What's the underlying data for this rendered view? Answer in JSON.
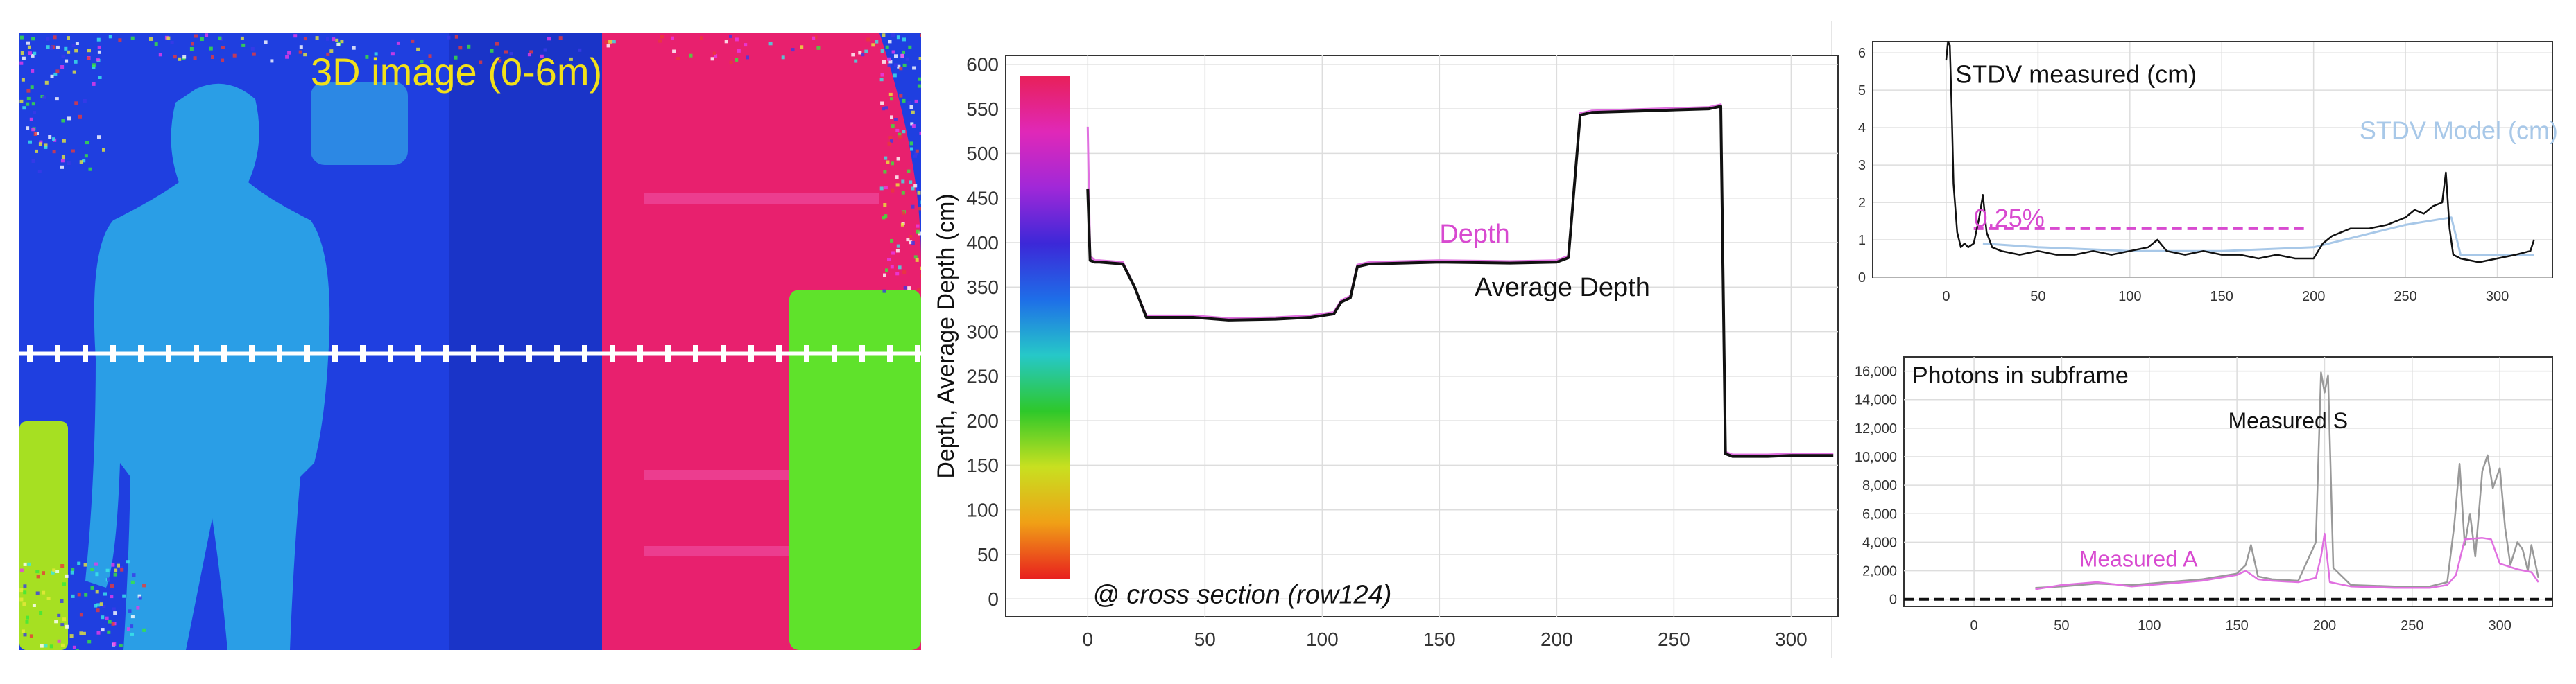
{
  "depth_image": {
    "title": "3D image (0-6m)",
    "title_color": "#f2e01a",
    "colors": {
      "background": "#1f3fe0",
      "person": "#2a9ee6",
      "pink_wall": "#e8206e",
      "green_box": "#5fe22b",
      "yellow_green": "#a6e022",
      "grid_line": "#ffffff"
    }
  },
  "chart_data": [
    {
      "type": "line",
      "id": "cross_section",
      "ylabel": "Depth, Average Depth (cm)",
      "xlim": [
        -35,
        320
      ],
      "ylim": [
        -20,
        610
      ],
      "xticks": [
        0,
        50,
        100,
        150,
        200,
        250,
        300
      ],
      "yticks": [
        0,
        50,
        100,
        150,
        200,
        250,
        300,
        350,
        400,
        450,
        500,
        550,
        600
      ],
      "grid": true,
      "colorbar_gradient": [
        "#e8201e",
        "#f0a016",
        "#c8e020",
        "#2ec82a",
        "#26c8c8",
        "#1e6ee8",
        "#3c28d8",
        "#a028d8",
        "#e028b8",
        "#e8205a"
      ],
      "annotations": [
        {
          "text": "Depth",
          "color": "#d84ad0",
          "x": 150,
          "y": 400
        },
        {
          "text": "Average Depth",
          "color": "#111111",
          "x": 165,
          "y": 340
        },
        {
          "text": "@ cross section (row124)",
          "color": "#111111",
          "x": 2,
          "y": -5
        }
      ],
      "series": [
        {
          "color": "#e070e0",
          "x": [
            0,
            0.5,
            1,
            3,
            5,
            15,
            20,
            25,
            30,
            45,
            60,
            80,
            95,
            105,
            108,
            112,
            115,
            120,
            150,
            180,
            200,
            205,
            210,
            215,
            240,
            265,
            270,
            272,
            275,
            290,
            300,
            318
          ],
          "y": [
            530,
            455,
            385,
            380,
            380,
            378,
            350,
            318,
            318,
            318,
            315,
            316,
            318,
            322,
            335,
            340,
            375,
            378,
            380,
            379,
            380,
            385,
            545,
            548,
            550,
            552,
            555,
            165,
            162,
            162,
            163,
            163
          ]
        },
        {
          "color": "#111111",
          "x": [
            0,
            1,
            3,
            5,
            15,
            20,
            25,
            30,
            45,
            60,
            80,
            95,
            105,
            108,
            112,
            115,
            120,
            150,
            180,
            200,
            205,
            210,
            215,
            240,
            265,
            270,
            272,
            275,
            290,
            300,
            318
          ],
          "y": [
            460,
            380,
            378,
            378,
            376,
            350,
            316,
            316,
            316,
            313,
            314,
            316,
            320,
            333,
            338,
            373,
            376,
            378,
            377,
            378,
            383,
            543,
            546,
            548,
            550,
            553,
            163,
            160,
            160,
            161,
            161
          ]
        }
      ]
    },
    {
      "type": "line",
      "id": "stdv",
      "xlim": [
        -40,
        330
      ],
      "ylim": [
        0,
        6.3
      ],
      "xticks": [
        0,
        50,
        100,
        150,
        200,
        250,
        300
      ],
      "yticks": [
        0,
        1,
        2,
        3,
        4,
        5,
        6
      ],
      "grid": true,
      "annotations": [
        {
          "text": "STDV measured (cm)",
          "color": "#111111",
          "x": 5,
          "y": 5.2
        },
        {
          "text": "STDV Model (cm)",
          "color": "#a8c8e8",
          "x": 225,
          "y": 3.7
        },
        {
          "text": "0.25%",
          "color": "#d84ad0",
          "x": 15,
          "y": 1.35
        }
      ],
      "reference_line": {
        "color": "#d84ad0",
        "x": [
          15,
          195
        ],
        "y": 1.3
      },
      "series": [
        {
          "color": "#a8c8e8",
          "x": [
            20,
            50,
            100,
            150,
            200,
            250,
            275,
            280,
            320
          ],
          "y": [
            0.9,
            0.8,
            0.7,
            0.7,
            0.8,
            1.4,
            1.6,
            0.6,
            0.6
          ]
        },
        {
          "color": "#111111",
          "x": [
            0,
            1,
            2,
            3,
            4,
            6,
            8,
            10,
            12,
            15,
            18,
            20,
            22,
            25,
            30,
            40,
            50,
            60,
            70,
            80,
            90,
            100,
            110,
            115,
            120,
            130,
            140,
            150,
            160,
            170,
            180,
            190,
            200,
            205,
            210,
            220,
            230,
            240,
            250,
            255,
            260,
            265,
            270,
            272,
            274,
            276,
            280,
            290,
            300,
            310,
            318,
            320
          ],
          "y": [
            5.8,
            6.3,
            6.2,
            4.5,
            2.5,
            1.2,
            0.8,
            0.9,
            0.8,
            0.9,
            1.6,
            2.2,
            1.2,
            0.8,
            0.7,
            0.6,
            0.7,
            0.6,
            0.6,
            0.7,
            0.6,
            0.7,
            0.8,
            1.0,
            0.7,
            0.6,
            0.7,
            0.6,
            0.6,
            0.5,
            0.6,
            0.5,
            0.5,
            0.9,
            1.1,
            1.3,
            1.3,
            1.4,
            1.6,
            1.8,
            1.7,
            1.9,
            2.0,
            2.8,
            1.3,
            0.6,
            0.5,
            0.4,
            0.5,
            0.6,
            0.7,
            1.0
          ]
        }
      ]
    },
    {
      "type": "line",
      "id": "photons",
      "title": "Photons in subframe",
      "xlim": [
        -40,
        330
      ],
      "ylim": [
        -500,
        17000
      ],
      "xticks": [
        0,
        50,
        100,
        150,
        200,
        250,
        300
      ],
      "yticks": [
        0,
        2000,
        4000,
        6000,
        8000,
        10000,
        12000,
        14000,
        16000
      ],
      "ytick_labels": [
        "0",
        "2,000",
        "4,000",
        "6,000",
        "8,000",
        "10,000",
        "12,000",
        "14,000",
        "16,000"
      ],
      "grid": true,
      "annotations": [
        {
          "text": "Measured S",
          "color": "#111111",
          "x": 145,
          "y": 12000
        },
        {
          "text": "Measured A",
          "color": "#d84ad0",
          "x": 60,
          "y": 2300
        }
      ],
      "reference_line": {
        "color": "#111111",
        "x": [
          -40,
          330
        ],
        "y": 0
      },
      "series": [
        {
          "color": "#999999",
          "x": [
            35,
            50,
            70,
            90,
            110,
            130,
            150,
            155,
            158,
            162,
            170,
            185,
            195,
            198,
            200,
            202,
            205,
            215,
            240,
            260,
            270,
            274,
            277,
            280,
            283,
            286,
            290,
            293,
            296,
            300,
            303,
            306,
            310,
            313,
            316,
            318,
            322
          ],
          "y": [
            800,
            900,
            1100,
            1000,
            1200,
            1400,
            1800,
            2400,
            3800,
            1600,
            1400,
            1300,
            4000,
            15900,
            14500,
            15700,
            2200,
            1000,
            900,
            900,
            1200,
            5200,
            9500,
            3800,
            6000,
            3000,
            9000,
            10100,
            7800,
            9200,
            5000,
            2400,
            4000,
            3500,
            2000,
            3800,
            1500
          ]
        },
        {
          "color": "#e070e0",
          "x": [
            35,
            50,
            70,
            90,
            110,
            130,
            150,
            155,
            162,
            170,
            185,
            195,
            198,
            200,
            203,
            215,
            240,
            260,
            270,
            275,
            280,
            290,
            295,
            300,
            310,
            318,
            322
          ],
          "y": [
            700,
            1000,
            1200,
            900,
            1100,
            1300,
            1700,
            2000,
            1400,
            1300,
            1200,
            1500,
            3000,
            4600,
            1200,
            900,
            800,
            800,
            1000,
            1700,
            4200,
            4300,
            4200,
            2500,
            2100,
            1900,
            1200
          ]
        }
      ]
    }
  ]
}
